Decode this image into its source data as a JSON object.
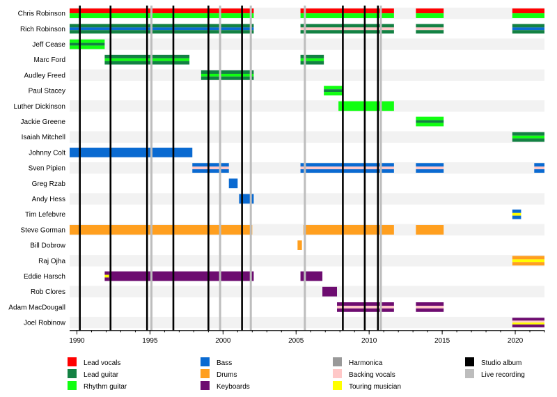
{
  "chart_data": {
    "type": "timeline",
    "xlabel": "",
    "ylabel": "",
    "x_range": [
      1989.5,
      2022.0
    ],
    "x_ticks": [
      1990,
      1995,
      2000,
      2005,
      2010,
      2015,
      2020
    ],
    "x_tick_labels": [
      "1990",
      "1995",
      "2000",
      "2005",
      "2010",
      "2015",
      "2020"
    ],
    "colors": {
      "lead_vocals": "#ff0000",
      "lead_guitar": "#138143",
      "rhythm_guitar": "#11ff11",
      "bass": "#0a6ad1",
      "drums": "#ff9f1f",
      "keyboards": "#6d0c70",
      "harmonica": "#999999",
      "backing_vocals": "#ffc8c8",
      "touring": "#ffff00",
      "studio": "#000000",
      "live": "#bdbdbd"
    },
    "members": [
      {
        "name": "Chris Robinson",
        "segments": [
          {
            "start": 1989.5,
            "end": 2002.1,
            "roles": [
              "lead_vocals",
              "rhythm_guitar"
            ]
          },
          {
            "start": 2005.3,
            "end": 2011.7,
            "roles": [
              "lead_vocals",
              "rhythm_guitar"
            ]
          },
          {
            "start": 2013.2,
            "end": 2015.1,
            "roles": [
              "lead_vocals",
              "rhythm_guitar"
            ]
          },
          {
            "start": 2019.8,
            "end": 2022.0,
            "roles": [
              "lead_vocals",
              "rhythm_guitar"
            ]
          }
        ]
      },
      {
        "name": "Rich Robinson",
        "segments": [
          {
            "start": 1989.5,
            "end": 2002.1,
            "roles": [
              "lead_guitar",
              "bass",
              "lead_guitar"
            ]
          },
          {
            "start": 2005.3,
            "end": 2011.7,
            "roles": [
              "lead_guitar",
              "backing_vocals",
              "lead_guitar"
            ]
          },
          {
            "start": 2013.2,
            "end": 2015.1,
            "roles": [
              "lead_guitar",
              "backing_vocals",
              "lead_guitar"
            ]
          },
          {
            "start": 2019.8,
            "end": 2022.0,
            "roles": [
              "lead_guitar",
              "bass",
              "lead_guitar"
            ]
          }
        ]
      },
      {
        "name": "Jeff Cease",
        "segments": [
          {
            "start": 1989.5,
            "end": 1991.9,
            "roles": [
              "rhythm_guitar",
              "lead_guitar",
              "rhythm_guitar"
            ]
          }
        ]
      },
      {
        "name": "Marc Ford",
        "segments": [
          {
            "start": 1991.9,
            "end": 1997.7,
            "roles": [
              "lead_guitar",
              "rhythm_guitar",
              "lead_guitar"
            ]
          },
          {
            "start": 2005.3,
            "end": 2006.9,
            "roles": [
              "lead_guitar",
              "rhythm_guitar",
              "lead_guitar"
            ]
          }
        ]
      },
      {
        "name": "Audley Freed",
        "segments": [
          {
            "start": 1998.5,
            "end": 2002.1,
            "roles": [
              "lead_guitar",
              "rhythm_guitar",
              "lead_guitar"
            ]
          }
        ]
      },
      {
        "name": "Paul Stacey",
        "segments": [
          {
            "start": 2006.9,
            "end": 2008.2,
            "roles": [
              "rhythm_guitar",
              "lead_guitar",
              "rhythm_guitar"
            ]
          }
        ]
      },
      {
        "name": "Luther Dickinson",
        "segments": [
          {
            "start": 2007.9,
            "end": 2011.7,
            "roles": [
              "rhythm_guitar"
            ]
          }
        ]
      },
      {
        "name": "Jackie Greene",
        "segments": [
          {
            "start": 2013.2,
            "end": 2015.1,
            "roles": [
              "rhythm_guitar",
              "lead_guitar",
              "rhythm_guitar"
            ]
          }
        ]
      },
      {
        "name": "Isaiah Mitchell",
        "segments": [
          {
            "start": 2019.8,
            "end": 2022.0,
            "roles": [
              "lead_guitar",
              "rhythm_guitar",
              "lead_guitar"
            ]
          }
        ]
      },
      {
        "name": "Johnny Colt",
        "segments": [
          {
            "start": 1989.5,
            "end": 1997.9,
            "roles": [
              "bass"
            ]
          }
        ]
      },
      {
        "name": "Sven Pipien",
        "segments": [
          {
            "start": 1997.9,
            "end": 2000.4,
            "roles": [
              "bass",
              "backing_vocals",
              "bass"
            ]
          },
          {
            "start": 2005.3,
            "end": 2011.7,
            "roles": [
              "bass",
              "backing_vocals",
              "bass"
            ]
          },
          {
            "start": 2013.2,
            "end": 2015.1,
            "roles": [
              "bass",
              "backing_vocals",
              "bass"
            ]
          },
          {
            "start": 2021.3,
            "end": 2022.0,
            "roles": [
              "bass",
              "backing_vocals",
              "bass"
            ]
          }
        ]
      },
      {
        "name": "Greg Rzab",
        "segments": [
          {
            "start": 2000.4,
            "end": 2001.0,
            "roles": [
              "bass"
            ]
          }
        ]
      },
      {
        "name": "Andy Hess",
        "segments": [
          {
            "start": 2001.1,
            "end": 2002.1,
            "roles": [
              "bass"
            ]
          }
        ]
      },
      {
        "name": "Tim Lefebvre",
        "segments": [
          {
            "start": 2019.8,
            "end": 2020.4,
            "roles": [
              "bass",
              "touring",
              "bass"
            ]
          }
        ]
      },
      {
        "name": "Steve Gorman",
        "segments": [
          {
            "start": 1989.5,
            "end": 2002.0,
            "roles": [
              "drums"
            ]
          },
          {
            "start": 2005.5,
            "end": 2011.7,
            "roles": [
              "drums"
            ]
          },
          {
            "start": 2013.2,
            "end": 2015.1,
            "roles": [
              "drums"
            ]
          }
        ]
      },
      {
        "name": "Bill Dobrow",
        "segments": [
          {
            "start": 2005.1,
            "end": 2005.4,
            "roles": [
              "drums"
            ]
          }
        ]
      },
      {
        "name": "Raj Ojha",
        "segments": [
          {
            "start": 2019.8,
            "end": 2022.0,
            "roles": [
              "drums",
              "touring",
              "drums"
            ]
          }
        ]
      },
      {
        "name": "Eddie Harsch",
        "segments": [
          {
            "start": 1991.9,
            "end": 1992.2,
            "roles": [
              "keyboards",
              "touring",
              "keyboards"
            ]
          },
          {
            "start": 1992.2,
            "end": 2002.1,
            "roles": [
              "keyboards"
            ]
          },
          {
            "start": 2005.3,
            "end": 2006.8,
            "roles": [
              "keyboards"
            ]
          }
        ]
      },
      {
        "name": "Rob Clores",
        "segments": [
          {
            "start": 2006.8,
            "end": 2007.8,
            "roles": [
              "keyboards"
            ]
          }
        ]
      },
      {
        "name": "Adam MacDougall",
        "segments": [
          {
            "start": 2007.8,
            "end": 2011.7,
            "roles": [
              "keyboards",
              "backing_vocals",
              "keyboards"
            ]
          },
          {
            "start": 2013.2,
            "end": 2015.1,
            "roles": [
              "keyboards",
              "backing_vocals",
              "keyboards"
            ]
          }
        ]
      },
      {
        "name": "Joel Robinow",
        "segments": [
          {
            "start": 2019.8,
            "end": 2022.0,
            "roles": [
              "keyboards",
              "backing_vocals",
              "touring",
              "keyboards"
            ]
          }
        ]
      }
    ],
    "studio_albums": [
      1990.2,
      1992.3,
      1994.8,
      1996.6,
      1999.0,
      2001.3,
      2008.2,
      2009.7,
      2010.6
    ],
    "live_recordings": [
      1995.1,
      1999.8,
      2001.9,
      2005.6,
      2010.8
    ],
    "legend": [
      {
        "key": "lead_vocals",
        "label": "Lead vocals"
      },
      {
        "key": "lead_guitar",
        "label": "Lead guitar"
      },
      {
        "key": "rhythm_guitar",
        "label": "Rhythm guitar"
      },
      {
        "key": "bass",
        "label": "Bass"
      },
      {
        "key": "drums",
        "label": "Drums"
      },
      {
        "key": "keyboards",
        "label": "Keyboards"
      },
      {
        "key": "harmonica",
        "label": "Harmonica"
      },
      {
        "key": "backing_vocals",
        "label": "Backing vocals"
      },
      {
        "key": "touring",
        "label": "Touring musician"
      },
      {
        "key": "studio",
        "label": "Studio album"
      },
      {
        "key": "live",
        "label": "Live recording"
      }
    ]
  }
}
